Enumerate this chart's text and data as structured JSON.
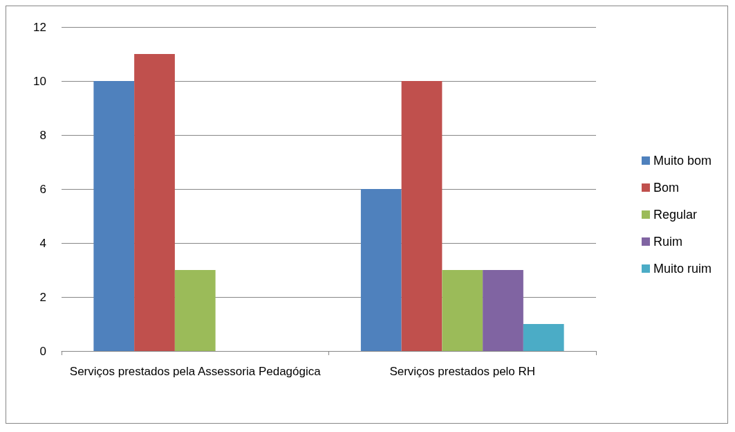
{
  "chart_data": {
    "type": "bar",
    "categories": [
      "Serviços prestados pela Assessoria Pedagógica",
      "Serviços prestados pelo RH"
    ],
    "series": [
      {
        "name": "Muito bom",
        "color": "#4f81bd",
        "values": [
          10,
          6
        ]
      },
      {
        "name": "Bom",
        "color": "#c0504d",
        "values": [
          11,
          10
        ]
      },
      {
        "name": "Regular",
        "color": "#9bbb59",
        "values": [
          3,
          3
        ]
      },
      {
        "name": "Ruim",
        "color": "#8064a2",
        "values": [
          0,
          3
        ]
      },
      {
        "name": "Muito ruim",
        "color": "#4bacc6",
        "values": [
          0,
          1
        ]
      }
    ],
    "ylim": [
      0,
      12
    ],
    "yticks": [
      0,
      2,
      4,
      6,
      8,
      10,
      12
    ],
    "grid": "y",
    "legend": "right"
  }
}
